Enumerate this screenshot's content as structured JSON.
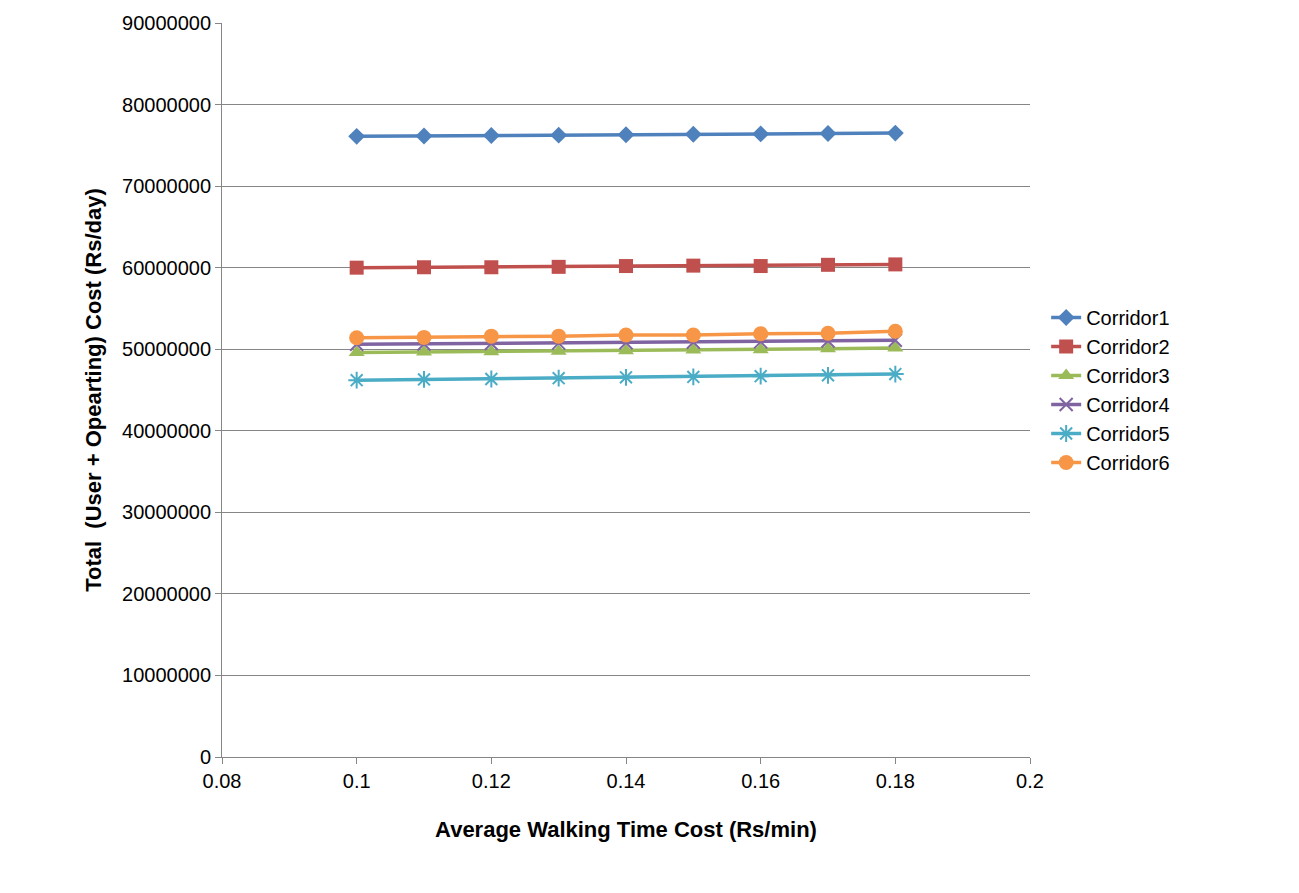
{
  "chart_data": {
    "type": "line",
    "x_label": "Average Walking Time Cost (Rs/min)",
    "y_label": "Total  (User + Opearting) Cost (Rs/day)",
    "x": [
      0.1,
      0.11,
      0.12,
      0.13,
      0.14,
      0.15,
      0.16,
      0.17,
      0.18
    ],
    "series": [
      {
        "name": "Corridor1",
        "color": "#4F81BD",
        "marker": "diamond",
        "values": [
          76100000,
          76150000,
          76200000,
          76250000,
          76300000,
          76350000,
          76400000,
          76450000,
          76500000
        ]
      },
      {
        "name": "Corridor2",
        "color": "#C0504D",
        "marker": "square",
        "values": [
          60000000,
          60050000,
          60050000,
          60100000,
          60200000,
          60250000,
          60200000,
          60350000,
          60400000
        ]
      },
      {
        "name": "Corridor3",
        "color": "#9BBB59",
        "marker": "triangle",
        "values": [
          49600000,
          49650000,
          49700000,
          49750000,
          49800000,
          49900000,
          49950000,
          50050000,
          50150000
        ]
      },
      {
        "name": "Corridor4",
        "color": "#8064A2",
        "marker": "x",
        "values": [
          50600000,
          50650000,
          50700000,
          50750000,
          50800000,
          50850000,
          50900000,
          51000000,
          51100000
        ]
      },
      {
        "name": "Corridor5",
        "color": "#4BACC6",
        "marker": "asterisk",
        "values": [
          46200000,
          46300000,
          46350000,
          46450000,
          46550000,
          46600000,
          46700000,
          46800000,
          46950000
        ]
      },
      {
        "name": "Corridor6",
        "color": "#F79646",
        "marker": "circle",
        "values": [
          51400000,
          51450000,
          51600000,
          51600000,
          51750000,
          51750000,
          51900000,
          51950000,
          52200000
        ]
      }
    ],
    "xlim": [
      0.08,
      0.2
    ],
    "xticks": [
      0.08,
      0.1,
      0.12,
      0.14,
      0.16,
      0.18,
      0.2
    ],
    "ylim": [
      0,
      90000000
    ],
    "yticks": [
      0,
      10000000,
      20000000,
      30000000,
      40000000,
      50000000,
      60000000,
      70000000,
      80000000,
      90000000
    ],
    "grid": true,
    "legend": "right"
  }
}
